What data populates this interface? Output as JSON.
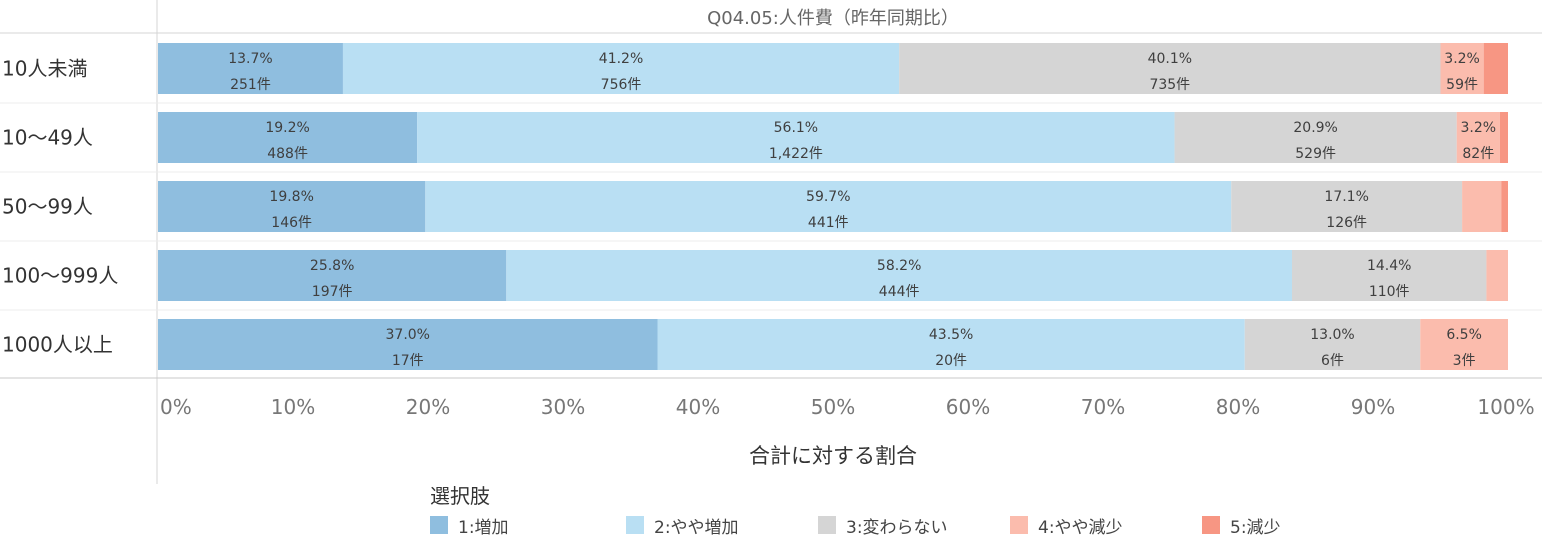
{
  "chart_data": {
    "type": "bar",
    "orientation": "horizontal",
    "stacked": "percent",
    "title": "Q04.05:人件費（昨年同期比）",
    "xlabel": "合計に対する割合",
    "xlim": [
      0,
      100
    ],
    "x_ticks": [
      "0%",
      "10%",
      "20%",
      "30%",
      "40%",
      "50%",
      "60%",
      "70%",
      "80%",
      "90%",
      "100%"
    ],
    "categories": [
      "10人未満",
      "10〜49人",
      "50〜99人",
      "100〜999人",
      "1000人以上"
    ],
    "series": [
      {
        "name": "1:増加",
        "color": "#8fbedf",
        "values": [
          13.7,
          19.2,
          19.8,
          25.8,
          37.0
        ],
        "pct_labels": [
          "13.7%",
          "19.2%",
          "19.8%",
          "25.8%",
          "37.0%"
        ],
        "count_labels": [
          "251件",
          "488件",
          "146件",
          "197件",
          "17件"
        ]
      },
      {
        "name": "2:やや増加",
        "color": "#b9dff3",
        "values": [
          41.2,
          56.1,
          59.7,
          58.2,
          43.5
        ],
        "pct_labels": [
          "41.2%",
          "56.1%",
          "59.7%",
          "58.2%",
          "43.5%"
        ],
        "count_labels": [
          "756件",
          "1,422件",
          "441件",
          "444件",
          "20件"
        ]
      },
      {
        "name": "3:変わらない",
        "color": "#d5d5d5",
        "values": [
          40.1,
          20.9,
          17.1,
          14.4,
          13.0
        ],
        "pct_labels": [
          "40.1%",
          "20.9%",
          "17.1%",
          "14.4%",
          "13.0%"
        ],
        "count_labels": [
          "735件",
          "529件",
          "126件",
          "110件",
          "6件"
        ]
      },
      {
        "name": "4:やや減少",
        "color": "#fbbcad",
        "values": [
          3.2,
          3.2,
          2.9,
          1.6,
          6.5
        ],
        "pct_labels": [
          "3.2%",
          "3.2%",
          "",
          "",
          "6.5%"
        ],
        "count_labels": [
          "59件",
          "82件",
          "",
          "",
          "3件"
        ]
      },
      {
        "name": "5:減少",
        "color": "#f79683",
        "values": [
          1.8,
          0.6,
          0.5,
          0.0,
          0.0
        ],
        "pct_labels": [
          "",
          "",
          "",
          "",
          ""
        ],
        "count_labels": [
          "",
          "",
          "",
          "",
          ""
        ]
      }
    ],
    "legend": {
      "title": "選択肢",
      "position": "bottom"
    },
    "grid": false
  }
}
